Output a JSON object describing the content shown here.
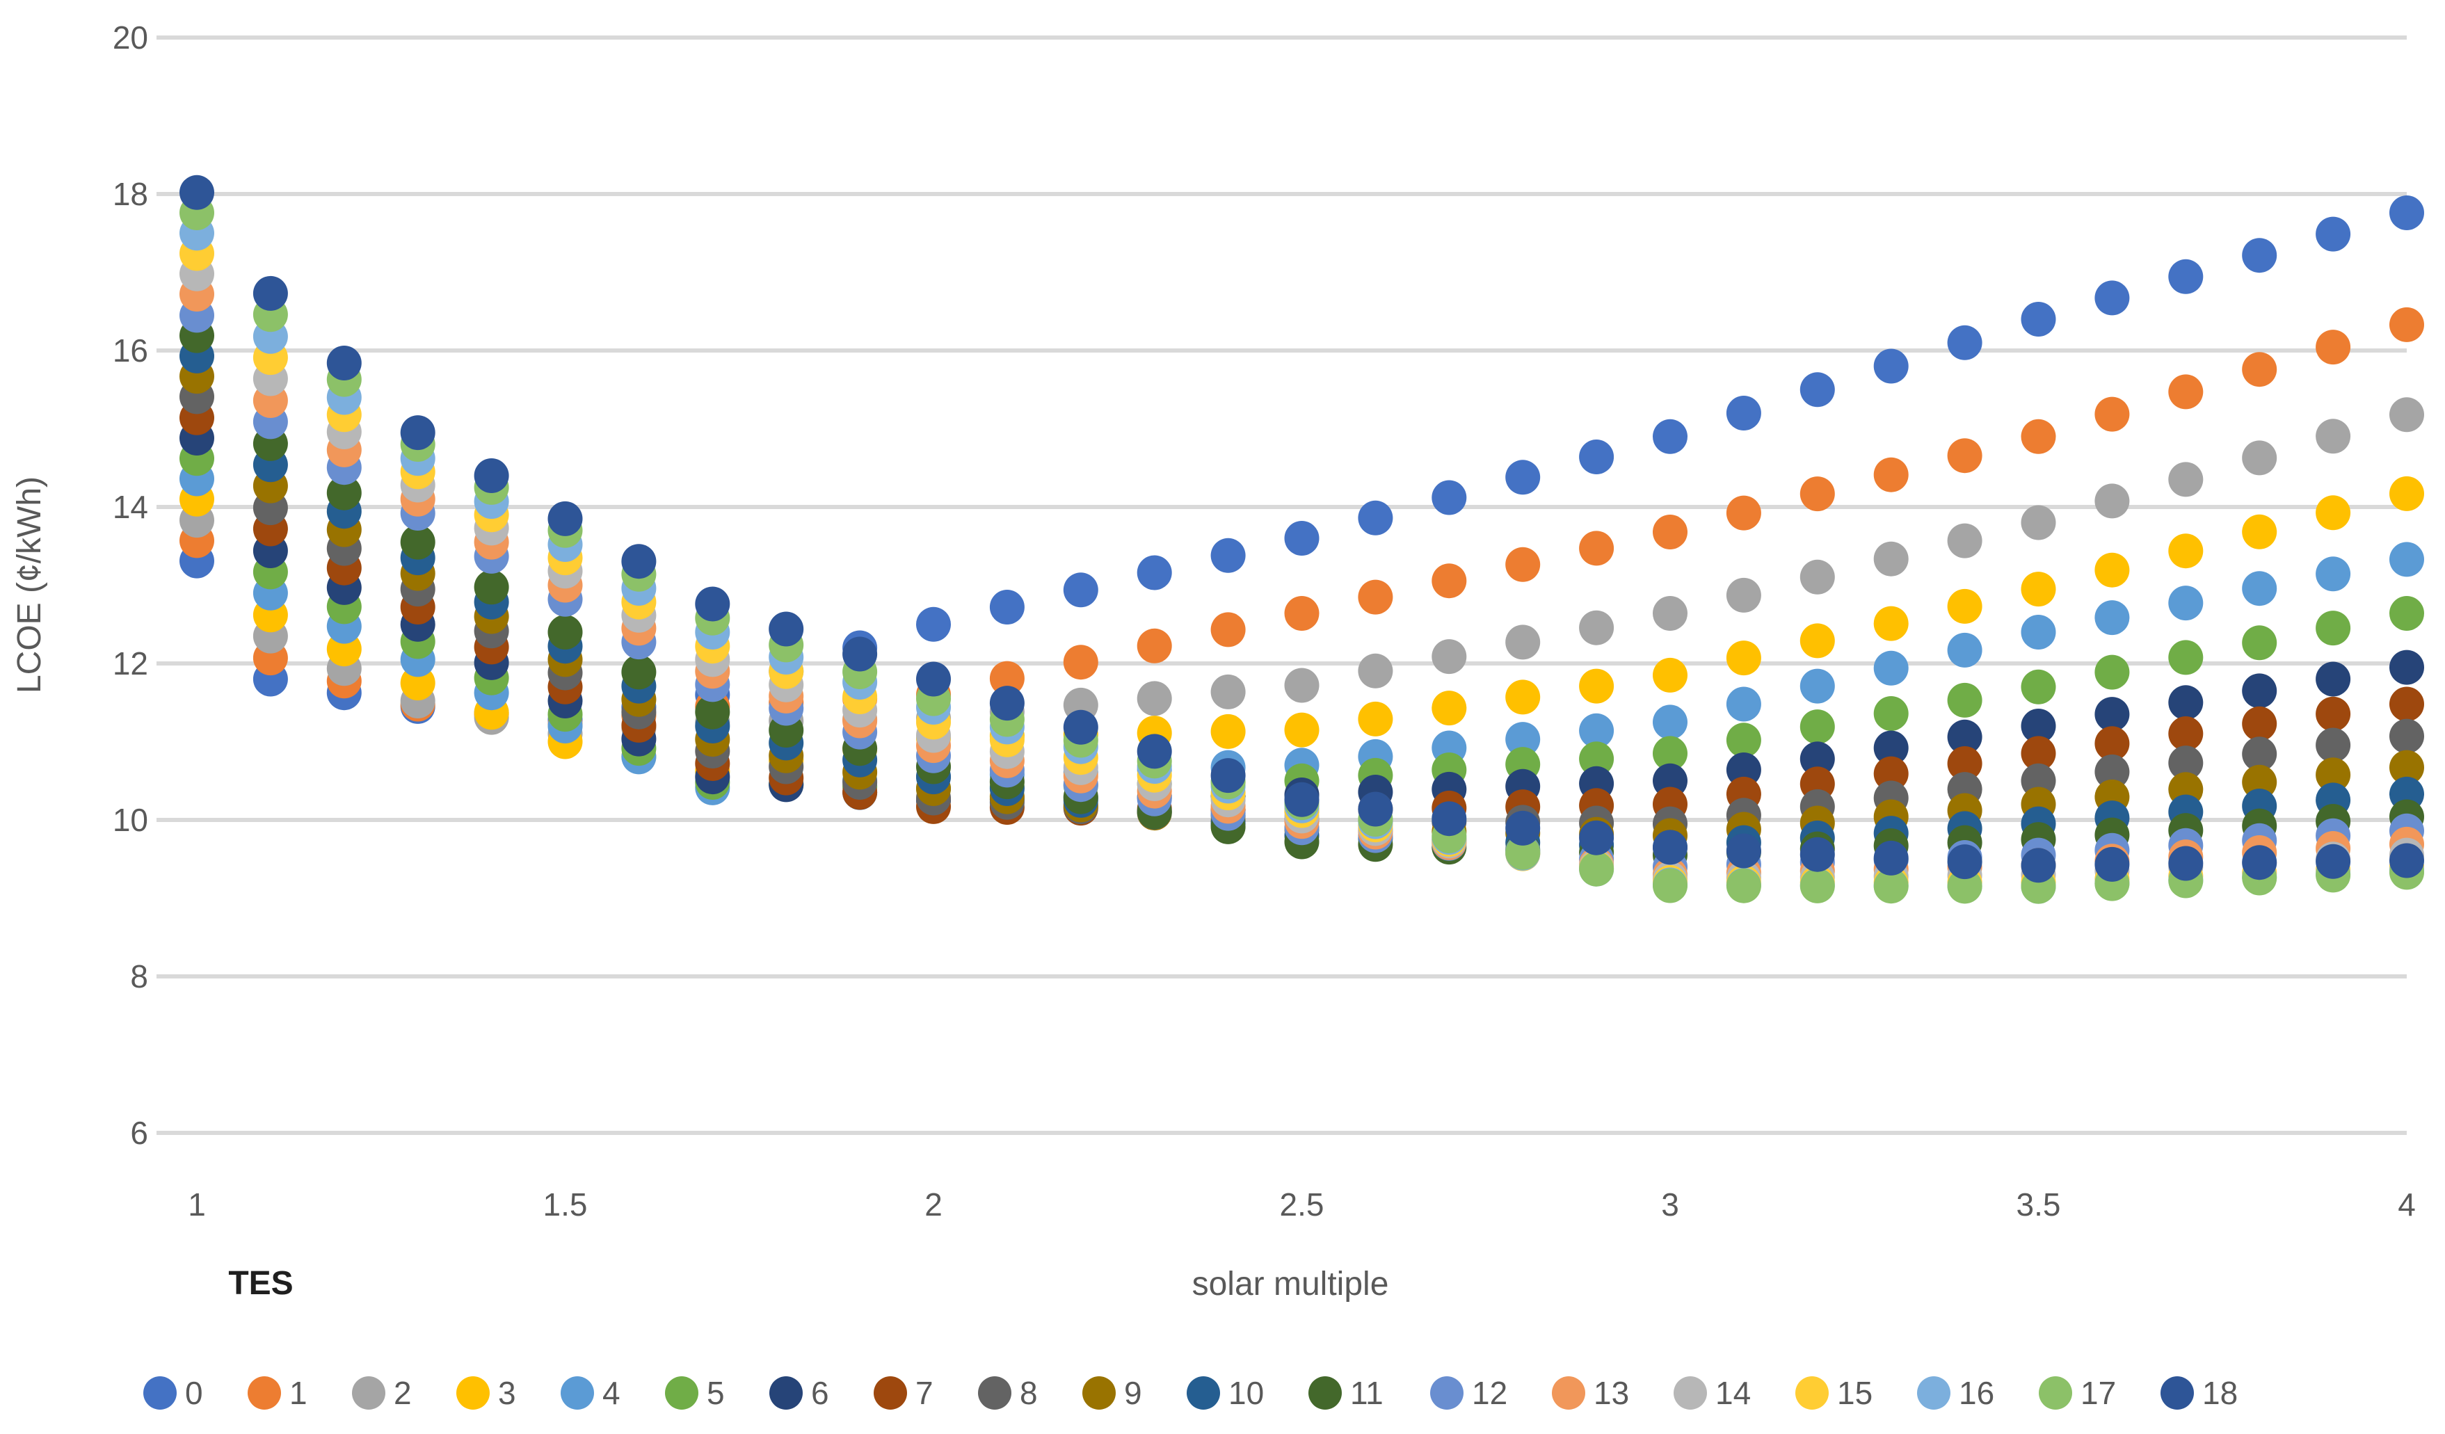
{
  "chart_data": {
    "type": "scatter",
    "title": "",
    "xlabel": "solar multiple",
    "ylabel": "LCOE (¢/kWh)",
    "legend_title": "TES",
    "legend_position": "bottom",
    "grid": "horizontal-only",
    "xlim": [
      1,
      4
    ],
    "ylim": [
      6,
      20
    ],
    "x_tick_labels": [
      "1",
      "1.5",
      "2",
      "2.5",
      "3",
      "3.5",
      "4"
    ],
    "x_tick_values": [
      1,
      1.5,
      2,
      2.5,
      3,
      3.5,
      4
    ],
    "y_tick_values": [
      6,
      8,
      10,
      12,
      14,
      16,
      18,
      20
    ],
    "x_sampling": {
      "start": 1.0,
      "end": 4.0,
      "step": 0.1
    },
    "x_control_points": [
      1.0,
      1.1,
      1.3,
      1.5,
      1.7,
      2.0,
      2.5,
      3.0,
      3.5,
      4.0
    ],
    "series_note": "Each series = thermal energy storage (TES) hours 0-18. values_at_control_points are LCOE in cents/kWh read from the figure at the x_control_points; intermediate 0.1-step points lie on the interpolated curve.",
    "series": [
      {
        "name": "0",
        "color": "#4472C4",
        "values_at_control_points": [
          13.31,
          11.8,
          11.45,
          11.28,
          11.6,
          12.5,
          13.6,
          14.9,
          16.4,
          17.76
        ]
      },
      {
        "name": "1",
        "color": "#ED7D31",
        "values_at_control_points": [
          13.57,
          12.07,
          11.48,
          11.22,
          11.45,
          11.6,
          12.64,
          13.68,
          14.9,
          16.33
        ]
      },
      {
        "name": "2",
        "color": "#A5A5A5",
        "values_at_control_points": [
          13.83,
          12.35,
          11.52,
          11.1,
          11.25,
          11.3,
          11.72,
          12.64,
          13.8,
          15.18
        ]
      },
      {
        "name": "3",
        "color": "#FFC000",
        "values_at_control_points": [
          14.1,
          12.62,
          11.75,
          11.0,
          10.62,
          11.05,
          11.15,
          11.85,
          12.95,
          14.17
        ]
      },
      {
        "name": "4",
        "color": "#5B9BD5",
        "values_at_control_points": [
          14.36,
          12.9,
          12.05,
          11.2,
          10.41,
          10.55,
          10.7,
          11.25,
          12.4,
          13.33
        ]
      },
      {
        "name": "5",
        "color": "#70AD47",
        "values_at_control_points": [
          14.62,
          13.17,
          12.28,
          11.35,
          10.48,
          10.4,
          10.5,
          10.85,
          11.7,
          12.64
        ]
      },
      {
        "name": "6",
        "color": "#264478",
        "values_at_control_points": [
          14.88,
          13.44,
          12.5,
          11.52,
          10.55,
          10.25,
          10.32,
          10.5,
          11.2,
          11.95
        ]
      },
      {
        "name": "7",
        "color": "#9E480E",
        "values_at_control_points": [
          15.14,
          13.72,
          12.72,
          11.7,
          10.72,
          10.17,
          10.12,
          10.2,
          10.85,
          11.48
        ]
      },
      {
        "name": "8",
        "color": "#636363",
        "values_at_control_points": [
          15.41,
          13.99,
          12.95,
          11.88,
          10.88,
          10.28,
          10.0,
          9.95,
          10.5,
          11.07
        ]
      },
      {
        "name": "9",
        "color": "#997300",
        "values_at_control_points": [
          15.67,
          14.27,
          13.15,
          12.05,
          11.03,
          10.4,
          9.88,
          9.8,
          10.2,
          10.67
        ]
      },
      {
        "name": "10",
        "color": "#255E91",
        "values_at_control_points": [
          15.93,
          14.54,
          13.35,
          12.22,
          11.2,
          10.55,
          9.8,
          9.65,
          9.95,
          10.33
        ]
      },
      {
        "name": "11",
        "color": "#43682B",
        "values_at_control_points": [
          16.19,
          14.81,
          13.55,
          12.4,
          11.38,
          10.68,
          9.72,
          9.55,
          9.75,
          10.04
        ]
      },
      {
        "name": "12",
        "color": "#698ED0",
        "values_at_control_points": [
          16.45,
          15.09,
          13.92,
          12.82,
          11.73,
          10.82,
          9.9,
          9.4,
          9.55,
          9.86
        ]
      },
      {
        "name": "13",
        "color": "#F1975A",
        "values_at_control_points": [
          16.72,
          15.36,
          14.1,
          13.0,
          11.9,
          10.95,
          9.98,
          9.3,
          9.42,
          9.69
        ]
      },
      {
        "name": "14",
        "color": "#B7B7B7",
        "values_at_control_points": [
          16.98,
          15.64,
          14.28,
          13.18,
          12.05,
          11.08,
          10.05,
          9.25,
          9.3,
          9.55
        ]
      },
      {
        "name": "15",
        "color": "#FFCD33",
        "values_at_control_points": [
          17.24,
          15.91,
          14.45,
          13.35,
          12.22,
          11.25,
          10.12,
          9.2,
          9.2,
          9.4
        ]
      },
      {
        "name": "16",
        "color": "#7CAFDD",
        "values_at_control_points": [
          17.5,
          16.18,
          14.62,
          13.52,
          12.4,
          11.44,
          10.18,
          9.17,
          9.15,
          9.35
        ]
      },
      {
        "name": "17",
        "color": "#8CC168",
        "values_at_control_points": [
          17.76,
          16.46,
          14.8,
          13.7,
          12.58,
          11.55,
          10.22,
          9.16,
          9.15,
          9.33
        ]
      },
      {
        "name": "18",
        "color": "#2E5597",
        "values_at_control_points": [
          18.02,
          16.73,
          14.95,
          13.85,
          12.76,
          11.8,
          10.26,
          9.65,
          9.42,
          9.48
        ]
      }
    ]
  },
  "colors": {
    "background": "#FFFFFF",
    "gridline": "#D9D9D9",
    "axis_text": "#595959",
    "legend_text": "#595959",
    "tes_label_text": "#1F1F1F"
  }
}
